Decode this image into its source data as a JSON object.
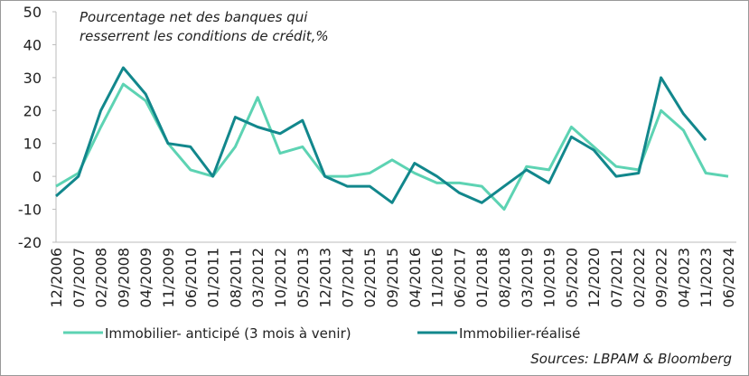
{
  "chart_data": {
    "type": "line",
    "title": [
      "Pourcentage net des banques qui",
      "resserrent les  conditions de crédit,%"
    ],
    "source": "Sources: LBPAM & Bloomberg",
    "categories": [
      "12/2006",
      "07/2007",
      "02/2008",
      "09/2008",
      "04/2009",
      "11/2009",
      "06/2010",
      "01/2011",
      "08/2011",
      "03/2012",
      "10/2012",
      "05/2013",
      "12/2013",
      "07/2014",
      "02/2015",
      "09/2015",
      "04/2016",
      "11/2016",
      "06/2017",
      "01/2018",
      "08/2018",
      "03/2019",
      "10/2019",
      "05/2020",
      "12/2020",
      "07/2021",
      "02/2022",
      "09/2022",
      "04/2023",
      "11/2023",
      "06/2024"
    ],
    "series": [
      {
        "name": "Immobilier- anticipé (3 mois à venir)",
        "color": "#5dd3b3",
        "values": [
          -3,
          1,
          15,
          28,
          23,
          10,
          2,
          0,
          9,
          24,
          7,
          9,
          0,
          0,
          1,
          5,
          1,
          -2,
          -2,
          -3,
          -10,
          3,
          2,
          15,
          9,
          3,
          2,
          20,
          14,
          1,
          0
        ]
      },
      {
        "name": "Immobilier-réalisé",
        "color": "#12878c",
        "values": [
          -6,
          0,
          20,
          33,
          25,
          10,
          9,
          0,
          18,
          15,
          13,
          17,
          0,
          -3,
          -3,
          -8,
          4,
          0,
          -5,
          -8,
          -3,
          2,
          -2,
          12,
          8,
          0,
          1,
          30,
          19,
          11,
          null
        ]
      }
    ],
    "ylim": [
      -20,
      50
    ],
    "yticks": [
      -20,
      -10,
      0,
      10,
      20,
      30,
      40,
      50
    ]
  }
}
